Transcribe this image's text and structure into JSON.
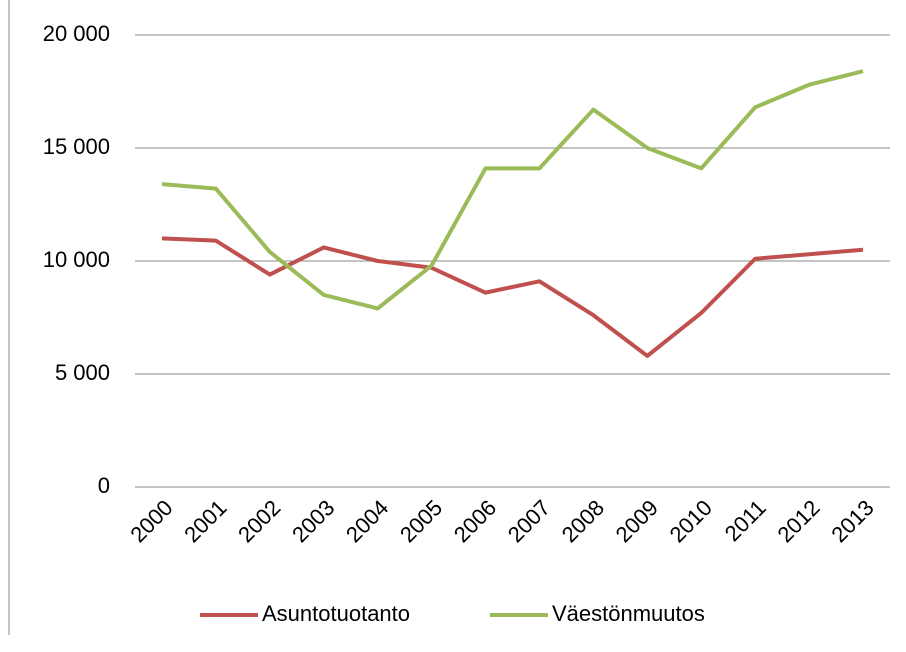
{
  "chart_data": {
    "type": "line",
    "categories": [
      "2000",
      "2001",
      "2002",
      "2003",
      "2004",
      "2005",
      "2006",
      "2007",
      "2008",
      "2009",
      "2010",
      "2011",
      "2012",
      "2013"
    ],
    "series": [
      {
        "name": "Asuntotuotanto",
        "color": "#c0504d",
        "values": [
          11000,
          10900,
          9400,
          10600,
          10000,
          9700,
          8600,
          9100,
          7600,
          5800,
          7700,
          10100,
          10300,
          10500
        ]
      },
      {
        "name": "Väestönmuutos",
        "color": "#9bbb59",
        "values": [
          13400,
          13200,
          10400,
          8500,
          7900,
          9800,
          14100,
          14100,
          16700,
          15000,
          14100,
          16800,
          17800,
          18400
        ]
      }
    ],
    "ylim": [
      0,
      20000
    ],
    "yticks": [
      0,
      {
        "value": 5000,
        "label": "5 000"
      },
      {
        "value": 10000,
        "label": "10 000"
      },
      {
        "value": 15000,
        "label": "15 000"
      },
      {
        "value": 20000,
        "label": "20 000"
      }
    ],
    "grid": true,
    "legend": "bottom"
  }
}
